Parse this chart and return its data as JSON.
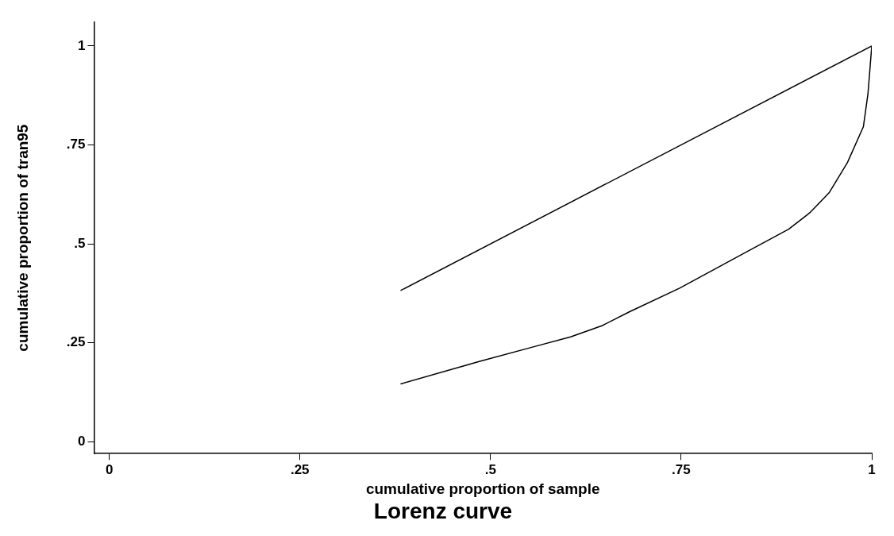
{
  "chart_data": {
    "type": "line",
    "title": "Lorenz curve",
    "xlabel": "cumulative proportion of sample",
    "ylabel": "cumulative proportion of tran95",
    "xlim": [
      -0.02,
      1.0
    ],
    "ylim": [
      -0.03,
      1.06
    ],
    "xticks": [
      {
        "value": 0,
        "label": "0"
      },
      {
        "value": 0.25,
        "label": ".25"
      },
      {
        "value": 0.5,
        "label": ".5"
      },
      {
        "value": 0.75,
        "label": ".75"
      },
      {
        "value": 1,
        "label": "1"
      }
    ],
    "yticks": [
      {
        "value": 0,
        "label": "0"
      },
      {
        "value": 0.25,
        "label": ".25"
      },
      {
        "value": 0.5,
        "label": ".5"
      },
      {
        "value": 0.75,
        "label": ".75"
      },
      {
        "value": 1,
        "label": "1"
      }
    ],
    "grid": false,
    "legend": false,
    "marker": "none",
    "line_style": "solid",
    "series": [
      {
        "color": "#000000",
        "x": [
          0.382,
          1.0
        ],
        "values": [
          0.382,
          1.0
        ]
      },
      {
        "color": "#000000",
        "x": [
          0.382,
          0.486,
          0.555,
          0.605,
          0.646,
          0.682,
          0.748,
          0.834,
          0.891,
          0.919,
          0.944,
          0.968,
          0.989,
          0.995,
          1.0
        ],
        "values": [
          0.146,
          0.203,
          0.239,
          0.265,
          0.293,
          0.328,
          0.388,
          0.478,
          0.537,
          0.579,
          0.629,
          0.705,
          0.796,
          0.879,
          1.0
        ]
      }
    ]
  }
}
